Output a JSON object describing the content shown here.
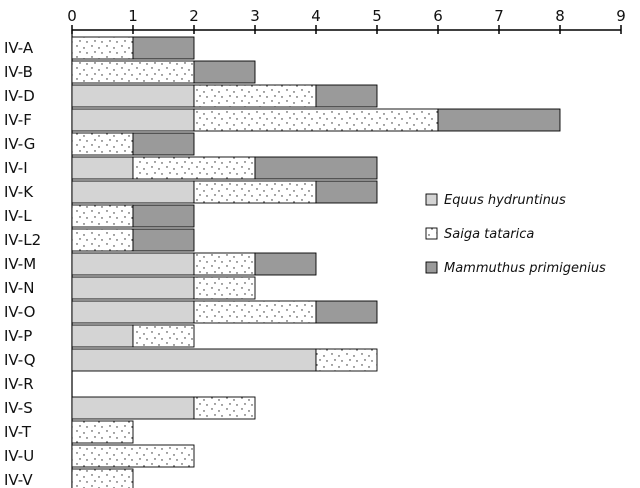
{
  "chart_data": {
    "type": "bar",
    "orientation": "horizontal",
    "stacked": true,
    "xlim": [
      0,
      9
    ],
    "x_ticks": [
      "0",
      "1",
      "2",
      "3",
      "4",
      "5",
      "6",
      "7",
      "8",
      "9"
    ],
    "x_axis_position": "top",
    "grid": false,
    "legend_position": "right",
    "categories": [
      "IV-A",
      "IV-B",
      "IV-D",
      "IV-F",
      "IV-G",
      "IV-I",
      "IV-K",
      "IV-L",
      "IV-L2",
      "IV-M",
      "IV-N",
      "IV-O",
      "IV-P",
      "IV-Q",
      "IV-R",
      "IV-S",
      "IV-T",
      "IV-U",
      "IV-V"
    ],
    "series": [
      {
        "name": "Equus hydruntinus",
        "pattern": "solid-light-gray",
        "color": "#d4d4d4",
        "values": [
          0,
          0,
          2,
          2,
          0,
          1,
          2,
          0,
          0,
          2,
          2,
          2,
          1,
          4,
          0,
          2,
          0,
          0,
          0
        ]
      },
      {
        "name": "Saiga tatarica",
        "pattern": "dotted",
        "color": "#ffffff",
        "values": [
          1,
          2,
          2,
          4,
          1,
          2,
          2,
          1,
          1,
          1,
          1,
          2,
          1,
          1,
          0,
          1,
          1,
          2,
          1
        ]
      },
      {
        "name": "Mammuthus primigenius",
        "pattern": "solid-dark-gray",
        "color": "#9a9a9a",
        "values": [
          1,
          1,
          1,
          2,
          1,
          2,
          1,
          1,
          1,
          1,
          0,
          1,
          0,
          0,
          0,
          0,
          0,
          0,
          0
        ]
      }
    ]
  }
}
